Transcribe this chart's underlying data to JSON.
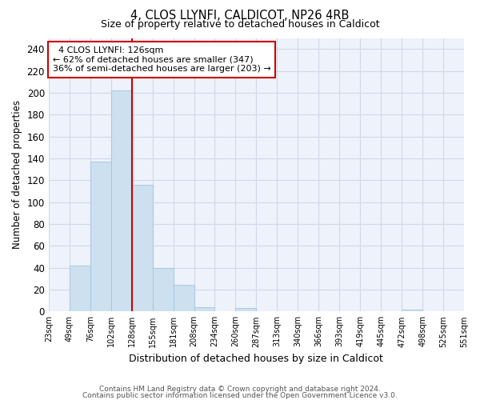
{
  "title1": "4, CLOS LLYNFI, CALDICOT, NP26 4RB",
  "title2": "Size of property relative to detached houses in Caldicot",
  "xlabel": "Distribution of detached houses by size in Caldicot",
  "ylabel": "Number of detached properties",
  "bar_values": [
    0,
    42,
    137,
    202,
    116,
    40,
    24,
    4,
    0,
    3,
    0,
    0,
    0,
    0,
    0,
    0,
    0,
    2,
    0,
    0
  ],
  "bar_labels": [
    "23sqm",
    "49sqm",
    "76sqm",
    "102sqm",
    "128sqm",
    "155sqm",
    "181sqm",
    "208sqm",
    "234sqm",
    "260sqm",
    "287sqm",
    "313sqm",
    "340sqm",
    "366sqm",
    "393sqm",
    "419sqm",
    "445sqm",
    "472sqm",
    "498sqm",
    "525sqm",
    "551sqm"
  ],
  "bar_color": "#cce0f0",
  "bar_edge_color": "#a0c4e0",
  "vline_color": "#cc0000",
  "vline_x": 4.0,
  "annotation_text": "  4 CLOS LLYNFI: 126sqm\n← 62% of detached houses are smaller (347)\n36% of semi-detached houses are larger (203) →",
  "annotation_box_color": "white",
  "annotation_box_edge_color": "#cc0000",
  "ylim": [
    0,
    250
  ],
  "yticks": [
    0,
    20,
    40,
    60,
    80,
    100,
    120,
    140,
    160,
    180,
    200,
    220,
    240
  ],
  "grid_color": "#d0d8e8",
  "bg_color": "#eef2fa",
  "footer1": "Contains HM Land Registry data © Crown copyright and database right 2024.",
  "footer2": "Contains public sector information licensed under the Open Government Licence v3.0."
}
